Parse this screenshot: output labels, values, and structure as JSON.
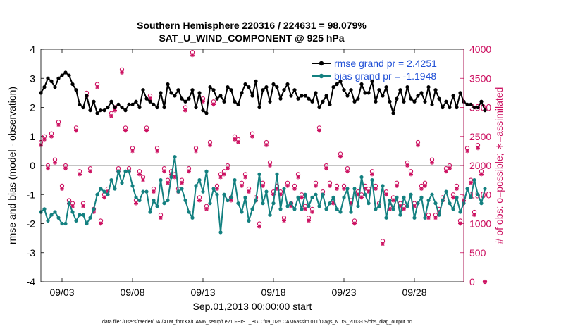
{
  "chart_data": {
    "type": "line",
    "title_line1": "Southern Hemisphere 220316 / 224631 = 98.079%",
    "title_line2": "SAT_U_WIND_COMPONENT @ 925 hPa",
    "xlabel": "Sep.01,2013 00:00:00 start",
    "ylabel_left": "rmse and bias (model - observation)",
    "ylabel_right": "# of obs: o=possible; ∗=assimilated",
    "footnote": "data file: /Users/raeder/DAI/ATM_forcXX/CAM6_setup/f.e21.FHIST_BGC.f09_025.CAM6assim.011/Diags_NTrS_2013-09/obs_diag_output.nc",
    "xlim": [
      1.5,
      31.5
    ],
    "ylim_left": [
      -4,
      4
    ],
    "ylim_right": [
      0,
      4000
    ],
    "x_ticks": [
      3,
      8,
      13,
      18,
      23,
      28
    ],
    "x_tick_labels": [
      "09/03",
      "09/08",
      "09/13",
      "09/18",
      "09/23",
      "09/28"
    ],
    "y_ticks_left": [
      -4,
      -3,
      -2,
      -1,
      0,
      1,
      2,
      3,
      4
    ],
    "y_tick_labels_left": [
      "-4",
      "-3",
      "-2",
      "-1",
      "0",
      "1",
      "2",
      "3",
      "4"
    ],
    "y_ticks_right": [
      0,
      500,
      1000,
      1500,
      2000,
      2500,
      3000,
      3500,
      4000
    ],
    "y_tick_labels_right": [
      "0",
      "500",
      "1000",
      "1500",
      "2000",
      "2500",
      "3000",
      "3500",
      "4000"
    ],
    "zero_line": 0,
    "x_start": 1.5,
    "x_step": 0.25,
    "legend": [
      {
        "label": "rmse grand pr = 2.4251",
        "color": "#000000"
      },
      {
        "label": "bias grand pr = -1.1948",
        "color": "#138080"
      }
    ],
    "series": [
      {
        "name": "rmse",
        "color": "#000000",
        "values": [
          2.5,
          2.7,
          3.0,
          2.9,
          2.7,
          3.0,
          3.1,
          3.2,
          3.1,
          2.8,
          2.6,
          2.1,
          2.0,
          2.4,
          1.9,
          2.2,
          1.8,
          1.9,
          1.9,
          2.0,
          2.2,
          2.0,
          2.1,
          2.0,
          1.9,
          2.1,
          2.1,
          2.2,
          2.0,
          2.6,
          2.3,
          2.2,
          2.1,
          2.0,
          2.5,
          2.0,
          2.8,
          2.5,
          2.4,
          2.6,
          2.3,
          2.2,
          2.3,
          2.6,
          2.0,
          2.5,
          1.9,
          1.8,
          2.7,
          2.6,
          2.3,
          2.4,
          2.2,
          2.7,
          2.6,
          2.2,
          2.1,
          2.5,
          2.8,
          2.7,
          2.4,
          2.9,
          2.0,
          2.6,
          2.7,
          2.2,
          2.8,
          2.7,
          2.3,
          2.6,
          2.8,
          2.4,
          2.6,
          2.3,
          2.4,
          2.4,
          2.3,
          2.2,
          2.5,
          2.0,
          2.2,
          2.4,
          2.1,
          2.7,
          2.8,
          2.9,
          2.6,
          2.4,
          2.6,
          2.2,
          2.3,
          2.8,
          2.5,
          2.5,
          2.9,
          2.2,
          2.6,
          2.4,
          2.7,
          2.2,
          1.8,
          2.3,
          2.6,
          2.2,
          2.7,
          2.3,
          2.2,
          2.4,
          2.5,
          2.2,
          2.7,
          2.1,
          2.6,
          2.3,
          2.0,
          2.2,
          2.0,
          2.4,
          2.0,
          2.5,
          2.2,
          2.1,
          2.1,
          2.0,
          2.0,
          2.2,
          1.9
        ]
      },
      {
        "name": "bias",
        "color": "#138080",
        "values": [
          -1.6,
          -1.5,
          -1.9,
          -1.7,
          -1.6,
          -1.8,
          -2.0,
          -2.0,
          -1.3,
          -1.6,
          -1.9,
          -1.7,
          -1.7,
          -2.0,
          -1.8,
          -1.5,
          -1.0,
          -0.8,
          -0.9,
          -1.0,
          -0.5,
          -0.8,
          -0.2,
          -0.6,
          -0.2,
          -0.2,
          -0.7,
          -1.1,
          -1.2,
          -0.9,
          -0.9,
          -1.6,
          -1.2,
          -1.4,
          -0.5,
          -1.3,
          -1.2,
          -0.4,
          0.3,
          -0.9,
          -0.8,
          -1.2,
          -1.6,
          -1.8,
          -0.7,
          -0.5,
          -0.9,
          -0.2,
          -1.3,
          -0.8,
          -1.0,
          -2.3,
          -1.0,
          -1.2,
          -1.1,
          -0.5,
          -1.3,
          -1.6,
          -1.1,
          -1.9,
          -1.5,
          -1.2,
          -0.3,
          -1.3,
          -0.9,
          -1.7,
          -1.3,
          -0.3,
          -1.5,
          -0.8,
          -1.4,
          -1.3,
          -1.5,
          -1.1,
          -1.5,
          -1.0,
          -1.4,
          -1.1,
          -1.0,
          -1.4,
          -1.0,
          -1.5,
          -1.3,
          -1.1,
          -1.5,
          -1.6,
          -1.1,
          -0.8,
          -1.6,
          -0.8,
          -1.4,
          -0.4,
          -1.0,
          -1.3,
          -0.5,
          -1.5,
          -1.4,
          -0.7,
          -1.8,
          -1.2,
          -1.5,
          -1.1,
          -1.7,
          -1.1,
          -1.4,
          -1.0,
          -1.8,
          -1.3,
          -1.1,
          -1.8,
          -1.2,
          -1.0,
          -1.3,
          -1.7,
          -1.2,
          -0.9,
          -1.3,
          -1.5,
          -1.1,
          -1.6,
          -1.3,
          -0.8,
          -1.1,
          -0.5,
          -1.0,
          -1.3,
          -0.8
        ]
      },
      {
        "name": "obs_possible",
        "color": "#cc1060",
        "values": [
          2400,
          2500,
          2000,
          2550,
          2100,
          2750,
          1650,
          2000,
          1400,
          1350,
          2650,
          1900,
          1350,
          3250,
          1950,
          1250,
          3400,
          1050,
          1500,
          1600,
          2900,
          3000,
          1950,
          3650,
          2650,
          1950,
          2300,
          1400,
          1900,
          1800,
          2650,
          3200,
          1600,
          2300,
          1150,
          1950,
          1750,
          1900,
          1850,
          1600,
          1750,
          3000,
          1950,
          3950,
          2300,
          1450,
          3150,
          1300,
          2400,
          3100,
          1650,
          1850,
          1900,
          2000,
          1450,
          2500,
          2450,
          1700,
          1850,
          1600,
          2550,
          1450,
          1000,
          1700,
          2400,
          2050,
          1550,
          1650,
          1550,
          1100,
          1700,
          1350,
          1650,
          1850,
          1500,
          1300,
          1100,
          1250,
          1700,
          2650,
          1550,
          2000,
          1700,
          1400,
          1650,
          2200,
          1650,
          1950,
          1400,
          1050,
          1550,
          1500,
          1650,
          1600,
          1900,
          1650,
          1350,
          700,
          1550,
          1300,
          1450,
          1700,
          1350,
          1300,
          2050,
          1900,
          1350,
          2400,
          1650,
          1700,
          1150,
          2100,
          1150,
          1250,
          1450,
          1950,
          2000,
          1500,
          1650,
          1050,
          1450,
          2300,
          1750,
          1200,
          2350,
          1900,
          0
        ]
      },
      {
        "name": "obs_assimilated",
        "color": "#cc1060",
        "values": [
          2350,
          2450,
          1950,
          2500,
          2050,
          2700,
          1600,
          1950,
          1350,
          1300,
          2600,
          1850,
          1300,
          3200,
          1900,
          1200,
          3350,
          1000,
          1450,
          1550,
          2850,
          2950,
          1900,
          3600,
          2600,
          1900,
          2250,
          1350,
          1850,
          1750,
          2600,
          3150,
          1550,
          2250,
          1100,
          1900,
          1700,
          1850,
          1800,
          1550,
          1700,
          2950,
          1900,
          3900,
          2250,
          1400,
          3100,
          1250,
          2350,
          3050,
          1600,
          1800,
          1850,
          1950,
          1400,
          2450,
          2400,
          1650,
          1800,
          1550,
          2500,
          1400,
          950,
          1650,
          2350,
          2000,
          1500,
          1600,
          1500,
          1050,
          1650,
          1300,
          1600,
          1800,
          1450,
          1250,
          1050,
          1200,
          1650,
          2600,
          1500,
          1950,
          1650,
          1350,
          1600,
          2150,
          1600,
          1900,
          1350,
          1000,
          1500,
          1450,
          1600,
          1550,
          1850,
          1600,
          1300,
          650,
          1500,
          1250,
          1400,
          1650,
          1300,
          1250,
          2000,
          1850,
          1300,
          2350,
          1600,
          1650,
          1100,
          2050,
          1100,
          1200,
          1400,
          1900,
          1950,
          1450,
          1600,
          1000,
          1400,
          2250,
          1700,
          1150,
          2300,
          1850,
          0
        ]
      }
    ]
  }
}
